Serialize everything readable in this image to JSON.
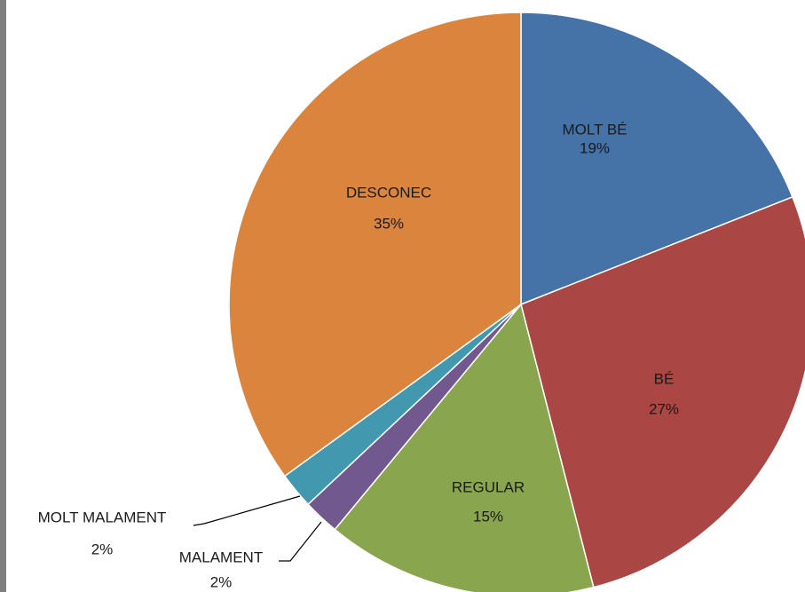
{
  "chart_data": {
    "type": "pie",
    "categories": [
      "MOLT BÉ",
      "BÉ",
      "REGULAR",
      "MALAMENT",
      "MOLT MALAMENT",
      "DESCONEC"
    ],
    "values": [
      19,
      27,
      15,
      2,
      2,
      35
    ],
    "value_labels": [
      "19%",
      "27%",
      "15%",
      "2%",
      "2%",
      "35%"
    ],
    "colors": [
      "#4572a7",
      "#aa4643",
      "#89a54e",
      "#71588f",
      "#4198af",
      "#db843d"
    ]
  }
}
